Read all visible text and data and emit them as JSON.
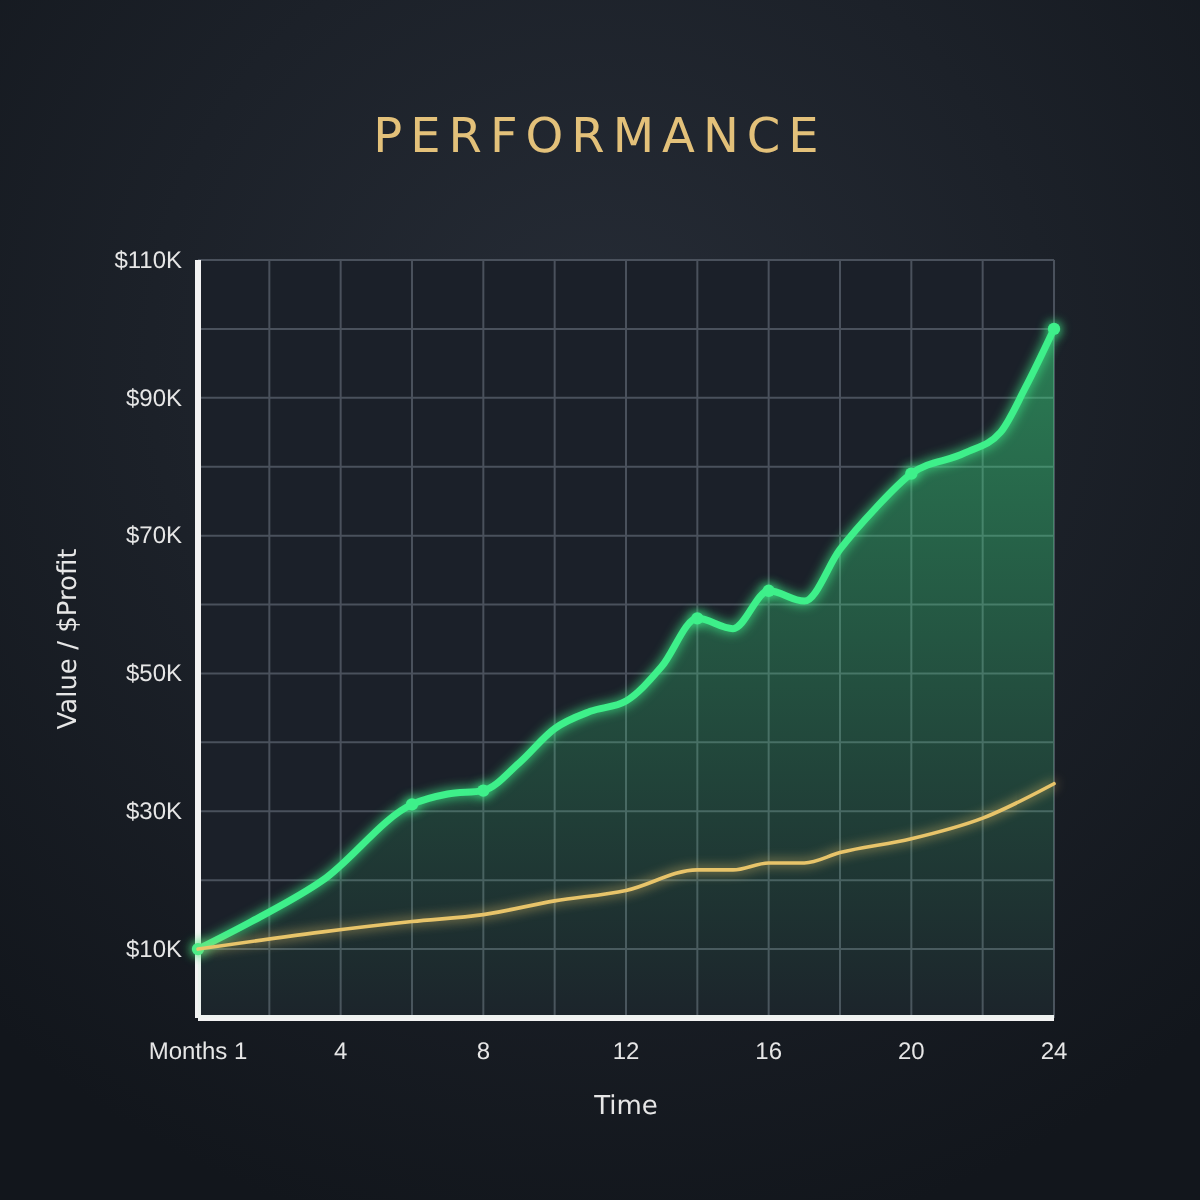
{
  "chart_data": {
    "type": "line",
    "title": "PERFORMANCE",
    "xlabel": "Time",
    "ylabel": "Value / $Profit",
    "xlim": [
      0,
      24
    ],
    "xticks": [
      {
        "value": 0,
        "label": "Months 1"
      },
      {
        "value": 2,
        "label": null
      },
      4,
      {
        "value": 6,
        "label": null
      },
      8,
      {
        "value": 10,
        "label": null
      },
      12,
      {
        "value": 14,
        "label": null
      },
      16,
      {
        "value": 18,
        "label": null
      },
      20,
      {
        "value": 22,
        "label": null
      },
      24
    ],
    "ylim": [
      0,
      110000
    ],
    "yticks": [
      {
        "value": 10000,
        "label": "$10K"
      },
      {
        "value": 20000,
        "label": null
      },
      {
        "value": 30000,
        "label": "$30K"
      },
      {
        "value": 40000,
        "label": null
      },
      {
        "value": 50000,
        "label": "$50K"
      },
      {
        "value": 60000,
        "label": null
      },
      {
        "value": 70000,
        "label": "$70K"
      },
      {
        "value": 80000,
        "label": null
      },
      {
        "value": 90000,
        "label": "$90K"
      },
      {
        "value": 100000,
        "label": null
      },
      {
        "value": 110000,
        "label": "$110K"
      }
    ],
    "grid": true,
    "series": [
      {
        "type": "area",
        "color": "#3ef08a",
        "x": [
          0,
          1.5,
          3.5,
          6,
          7,
          8,
          9,
          10,
          11,
          12,
          13,
          14,
          15,
          16,
          17,
          18,
          19,
          20,
          21.5,
          22.5,
          23.2,
          24
        ],
        "values": [
          10000,
          14000,
          20000,
          31000,
          32500,
          33000,
          37000,
          42000,
          44500,
          46000,
          51000,
          58000,
          56500,
          62000,
          60500,
          68000,
          74000,
          79000,
          82000,
          85000,
          91500,
          100000
        ]
      },
      {
        "type": "scatter",
        "color": "#3ef08a",
        "marker": "circle",
        "x": [
          0,
          6,
          8,
          14,
          16,
          20,
          24
        ],
        "values": [
          10000,
          31000,
          33000,
          58000,
          62000,
          79000,
          100000
        ]
      },
      {
        "color": "#e8c46a",
        "x": [
          0,
          3.5,
          6,
          8,
          10,
          12,
          14,
          15,
          16,
          17,
          18,
          20,
          22,
          24
        ],
        "values": [
          10000,
          12500,
          14000,
          15000,
          17000,
          18500,
          21500,
          21500,
          22500,
          22500,
          24000,
          26000,
          29000,
          34000
        ]
      }
    ]
  }
}
